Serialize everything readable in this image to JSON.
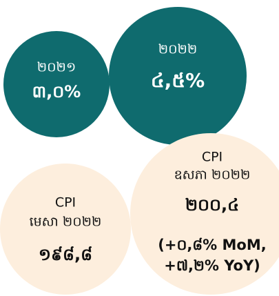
{
  "circles": [
    {
      "year": "២០២១",
      "value": "៣,០%"
    },
    {
      "year": "២០២២",
      "value": "៤,៥%"
    },
    {
      "title": "CPI",
      "period": "មេសា ២០២២",
      "value": "១៩៨,៨"
    },
    {
      "title": "CPI",
      "period": "ឧសភា ២០២២",
      "value": "២០០,៤",
      "change_line_1": "(+០,៨% MoM,",
      "change_line_2": "+៧,២% YoY)"
    }
  ]
}
